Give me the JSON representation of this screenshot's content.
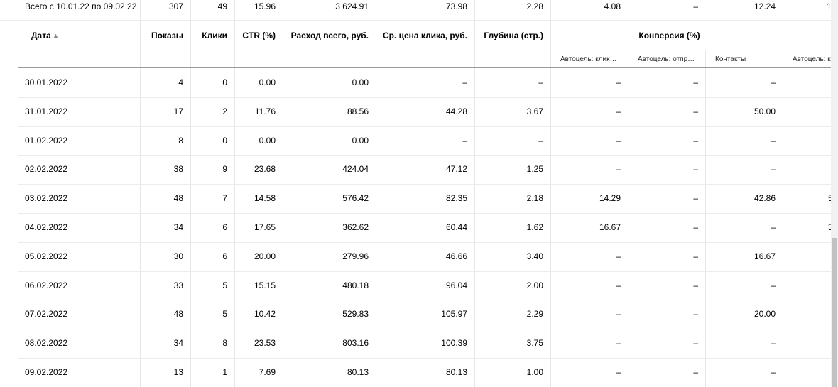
{
  "summary": {
    "label": "Всего с 10.01.22 по 09.02.22",
    "cells": [
      "307",
      "49",
      "15.96",
      "3 624.91",
      "73.98",
      "2.28",
      "4.08",
      "–",
      "12.24",
      "1"
    ]
  },
  "header": {
    "columns": [
      "Дата",
      "Показы",
      "Клики",
      "CTR (%)",
      "Расход всего, руб.",
      "Ср. цена клика, руб.",
      "Глубина (стр.)"
    ],
    "sort_icon": "▲",
    "group": "Конверсия (%)",
    "subcolumns": [
      "Автоцель: клик…",
      "Автоцель: отпр…",
      "Контакты",
      "Автоцель: к"
    ]
  },
  "rows": [
    [
      "30.01.2022",
      "4",
      "0",
      "0.00",
      "0.00",
      "–",
      "–",
      "–",
      "–",
      "–",
      null
    ],
    [
      "31.01.2022",
      "17",
      "2",
      "11.76",
      "88.56",
      "44.28",
      "3.67",
      "–",
      "–",
      "50.00",
      null
    ],
    [
      "01.02.2022",
      "8",
      "0",
      "0.00",
      "0.00",
      "–",
      "–",
      "–",
      "–",
      "–",
      null
    ],
    [
      "02.02.2022",
      "38",
      "9",
      "23.68",
      "424.04",
      "47.12",
      "1.25",
      "–",
      "–",
      "–",
      null
    ],
    [
      "03.02.2022",
      "48",
      "7",
      "14.58",
      "576.42",
      "82.35",
      "2.18",
      "14.29",
      "–",
      "42.86",
      "5"
    ],
    [
      "04.02.2022",
      "34",
      "6",
      "17.65",
      "362.62",
      "60.44",
      "1.62",
      "16.67",
      "–",
      "–",
      "3"
    ],
    [
      "05.02.2022",
      "30",
      "6",
      "20.00",
      "279.96",
      "46.66",
      "3.40",
      "–",
      "–",
      "16.67",
      null
    ],
    [
      "06.02.2022",
      "33",
      "5",
      "15.15",
      "480.18",
      "96.04",
      "2.00",
      "–",
      "–",
      "–",
      null
    ],
    [
      "07.02.2022",
      "48",
      "5",
      "10.42",
      "529.83",
      "105.97",
      "2.29",
      "–",
      "–",
      "20.00",
      null
    ],
    [
      "08.02.2022",
      "34",
      "8",
      "23.53",
      "803.16",
      "100.39",
      "3.75",
      "–",
      "–",
      "–",
      null
    ],
    [
      "09.02.2022",
      "13",
      "1",
      "7.69",
      "80.13",
      "80.13",
      "1.00",
      "–",
      "–",
      "–",
      null
    ]
  ]
}
